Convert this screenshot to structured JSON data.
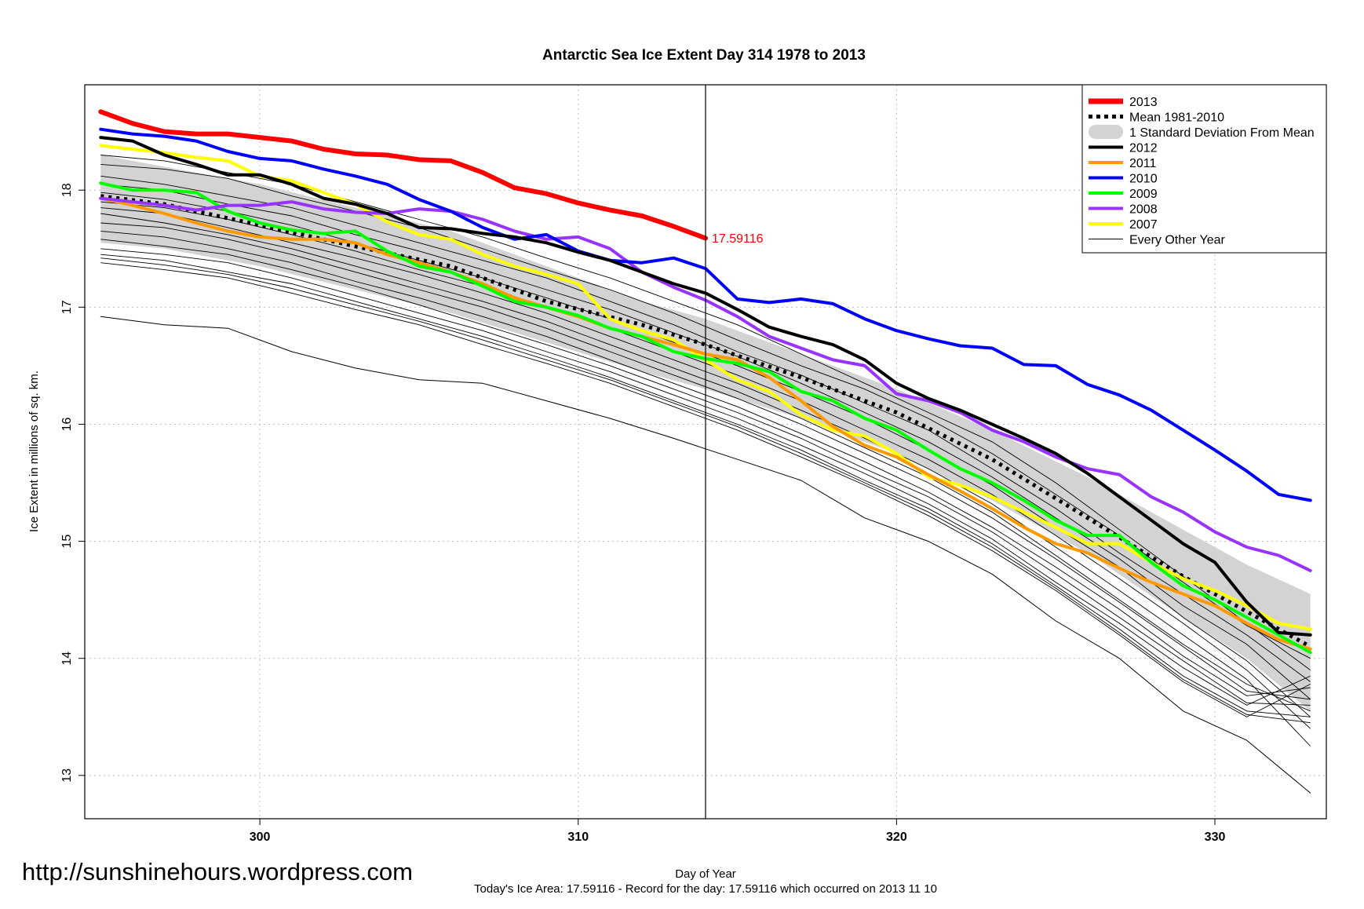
{
  "watermark": "http://sunshinehours.wordpress.com",
  "footer": "Today's Ice Area: 17.59116  - Record for the day: 17.59116 which occurred on 2013 11 10",
  "chart_data": {
    "type": "line",
    "title": "Antarctic Sea Ice Extent Day 314 1978 to 2013",
    "xlabel": "Day of Year",
    "ylabel": "Ice Extent in millions of sq. km.",
    "xlim": [
      294.5,
      333.5
    ],
    "ylim": [
      12.63,
      18.9
    ],
    "xticks": [
      300,
      310,
      320,
      330
    ],
    "yticks": [
      13,
      14,
      15,
      16,
      17,
      18
    ],
    "grid": true,
    "legend_position": "top-right",
    "vline_x": 314,
    "endpoint_label": {
      "x": 314,
      "y": 17.59116,
      "text": "17.59116",
      "color": "#ff0000"
    },
    "band": {
      "label": "1 Standard Deviation From Mean",
      "color": "#d3d3d3",
      "x": [
        295,
        297,
        300,
        303,
        306,
        309,
        312,
        314,
        317,
        320,
        323,
        326,
        329,
        331,
        333
      ],
      "upper": [
        18.3,
        18.2,
        18.05,
        17.85,
        17.65,
        17.35,
        17.05,
        16.9,
        16.6,
        16.3,
        15.95,
        15.55,
        15.1,
        14.8,
        14.55
      ],
      "lower": [
        17.55,
        17.5,
        17.35,
        17.15,
        16.95,
        16.7,
        16.45,
        16.3,
        16.05,
        15.75,
        15.35,
        14.9,
        14.35,
        14.0,
        13.55
      ]
    },
    "series": [
      {
        "name": "2013",
        "color": "#ff0000",
        "width": 6,
        "dash": "",
        "x": [
          295,
          296,
          297,
          298,
          299,
          300,
          301,
          302,
          303,
          304,
          305,
          306,
          307,
          308,
          309,
          310,
          311,
          312,
          313,
          314
        ],
        "y": [
          18.67,
          18.57,
          18.5,
          18.48,
          18.48,
          18.45,
          18.42,
          18.35,
          18.31,
          18.3,
          18.26,
          18.25,
          18.15,
          18.02,
          17.97,
          17.89,
          17.83,
          17.78,
          17.69,
          17.59
        ]
      },
      {
        "name": "Mean 1981-2010",
        "color": "#000000",
        "width": 5,
        "dash": "4 6",
        "x": [
          295,
          297,
          300,
          303,
          306,
          309,
          312,
          314,
          317,
          320,
          323,
          326,
          329,
          331,
          333
        ],
        "y": [
          17.95,
          17.88,
          17.7,
          17.52,
          17.35,
          17.05,
          16.85,
          16.68,
          16.4,
          16.1,
          15.7,
          15.2,
          14.7,
          14.4,
          14.1
        ]
      },
      {
        "name": "2012",
        "color": "#000000",
        "width": 4,
        "dash": "",
        "x": [
          295,
          296,
          297,
          298,
          299,
          300,
          301,
          302,
          303,
          304,
          305,
          306,
          307,
          308,
          309,
          310,
          311,
          312,
          313,
          314,
          315,
          316,
          317,
          318,
          319,
          320,
          321,
          322,
          323,
          324,
          325,
          326,
          327,
          328,
          329,
          330,
          331,
          332,
          333
        ],
        "y": [
          18.45,
          18.42,
          18.3,
          18.22,
          18.13,
          18.13,
          18.05,
          17.93,
          17.88,
          17.8,
          17.68,
          17.67,
          17.63,
          17.6,
          17.55,
          17.47,
          17.4,
          17.3,
          17.2,
          17.12,
          16.98,
          16.83,
          16.75,
          16.68,
          16.55,
          16.35,
          16.22,
          16.12,
          16.0,
          15.88,
          15.75,
          15.58,
          15.38,
          15.18,
          14.98,
          14.82,
          14.48,
          14.22,
          14.2
        ]
      },
      {
        "name": "2011",
        "color": "#ff9900",
        "width": 4,
        "dash": "",
        "x": [
          295,
          296,
          297,
          298,
          299,
          300,
          301,
          302,
          303,
          304,
          305,
          306,
          307,
          308,
          309,
          310,
          311,
          312,
          313,
          314,
          315,
          316,
          317,
          318,
          319,
          320,
          321,
          322,
          323,
          324,
          325,
          326,
          327,
          328,
          329,
          330,
          331,
          332,
          333
        ],
        "y": [
          17.93,
          17.87,
          17.8,
          17.72,
          17.65,
          17.6,
          17.58,
          17.58,
          17.55,
          17.45,
          17.38,
          17.3,
          17.2,
          17.08,
          17.0,
          16.92,
          16.82,
          16.75,
          16.68,
          16.6,
          16.55,
          16.4,
          16.2,
          15.98,
          15.82,
          15.72,
          15.57,
          15.43,
          15.28,
          15.12,
          14.98,
          14.9,
          14.77,
          14.65,
          14.55,
          14.45,
          14.3,
          14.16,
          14.08
        ]
      },
      {
        "name": "2010",
        "color": "#0000ff",
        "width": 4,
        "dash": "",
        "x": [
          295,
          296,
          297,
          298,
          299,
          300,
          301,
          302,
          303,
          304,
          305,
          306,
          307,
          308,
          309,
          310,
          311,
          312,
          313,
          314,
          315,
          316,
          317,
          318,
          319,
          320,
          321,
          322,
          323,
          324,
          325,
          326,
          327,
          328,
          329,
          330,
          331,
          332,
          333
        ],
        "y": [
          18.52,
          18.48,
          18.46,
          18.42,
          18.33,
          18.27,
          18.25,
          18.18,
          18.12,
          18.05,
          17.92,
          17.82,
          17.68,
          17.58,
          17.62,
          17.48,
          17.4,
          17.38,
          17.42,
          17.33,
          17.07,
          17.04,
          17.07,
          17.03,
          16.9,
          16.8,
          16.73,
          16.67,
          16.65,
          16.51,
          16.5,
          16.34,
          16.25,
          16.12,
          15.95,
          15.78,
          15.6,
          15.4,
          15.35
        ]
      },
      {
        "name": "2009",
        "color": "#00ff00",
        "width": 4,
        "dash": "",
        "x": [
          295,
          296,
          297,
          298,
          299,
          300,
          301,
          302,
          303,
          304,
          305,
          306,
          307,
          308,
          309,
          310,
          311,
          312,
          313,
          314,
          315,
          316,
          317,
          318,
          319,
          320,
          321,
          322,
          323,
          324,
          325,
          326,
          327,
          328,
          329,
          330,
          331,
          332,
          333
        ],
        "y": [
          18.06,
          18.0,
          18.0,
          17.98,
          17.82,
          17.72,
          17.66,
          17.63,
          17.65,
          17.48,
          17.35,
          17.3,
          17.18,
          17.05,
          17.0,
          16.93,
          16.82,
          16.75,
          16.62,
          16.56,
          16.52,
          16.45,
          16.28,
          16.2,
          16.05,
          15.95,
          15.78,
          15.62,
          15.5,
          15.35,
          15.18,
          15.05,
          15.05,
          14.82,
          14.62,
          14.5,
          14.35,
          14.2,
          14.05
        ]
      },
      {
        "name": "2008",
        "color": "#9933ff",
        "width": 4,
        "dash": "",
        "x": [
          295,
          296,
          297,
          298,
          299,
          300,
          301,
          302,
          303,
          304,
          305,
          306,
          307,
          308,
          309,
          310,
          311,
          312,
          313,
          314,
          315,
          316,
          317,
          318,
          319,
          320,
          321,
          322,
          323,
          324,
          325,
          326,
          327,
          328,
          329,
          330,
          331,
          332,
          333
        ],
        "y": [
          17.93,
          17.9,
          17.87,
          17.83,
          17.87,
          17.87,
          17.9,
          17.84,
          17.81,
          17.8,
          17.84,
          17.82,
          17.75,
          17.65,
          17.58,
          17.6,
          17.5,
          17.3,
          17.17,
          17.06,
          16.92,
          16.75,
          16.65,
          16.55,
          16.5,
          16.26,
          16.2,
          16.1,
          15.95,
          15.85,
          15.72,
          15.62,
          15.57,
          15.38,
          15.25,
          15.08,
          14.95,
          14.88,
          14.75
        ]
      },
      {
        "name": "2007",
        "color": "#ffff00",
        "width": 4,
        "dash": "",
        "x": [
          295,
          296,
          297,
          298,
          299,
          300,
          301,
          302,
          303,
          304,
          305,
          306,
          307,
          308,
          309,
          310,
          311,
          312,
          313,
          314,
          315,
          316,
          317,
          318,
          319,
          320,
          321,
          322,
          323,
          324,
          325,
          326,
          327,
          328,
          329,
          330,
          331,
          332,
          333
        ],
        "y": [
          18.38,
          18.35,
          18.32,
          18.28,
          18.25,
          18.12,
          18.08,
          17.98,
          17.88,
          17.73,
          17.62,
          17.58,
          17.45,
          17.35,
          17.28,
          17.2,
          16.9,
          16.8,
          16.72,
          16.55,
          16.38,
          16.28,
          16.08,
          15.95,
          15.9,
          15.75,
          15.55,
          15.48,
          15.38,
          15.25,
          15.12,
          14.98,
          14.98,
          14.82,
          14.68,
          14.58,
          14.45,
          14.3,
          14.25
        ]
      },
      {
        "name": "Every Other Year",
        "color": "#000000",
        "width": 1,
        "dash": "",
        "x": [
          295,
          297,
          299,
          301,
          303,
          305,
          307,
          309,
          311,
          313,
          315,
          317,
          319,
          321,
          323,
          325,
          327,
          329,
          331,
          333
        ],
        "y": [
          16.92,
          16.85,
          16.82,
          16.62,
          16.48,
          16.38,
          16.35,
          16.2,
          16.05,
          15.88,
          15.7,
          15.52,
          15.2,
          15.0,
          14.72,
          14.32,
          14.0,
          13.55,
          13.3,
          12.85
        ]
      }
    ],
    "background_lines": {
      "color": "#000000",
      "x": [
        295,
        297,
        299,
        301,
        303,
        305,
        307,
        309,
        311,
        313,
        315,
        317,
        319,
        321,
        323,
        325,
        327,
        329,
        331,
        333
      ],
      "lines": [
        [
          18.3,
          18.25,
          18.15,
          18.05,
          17.9,
          17.75,
          17.6,
          17.42,
          17.25,
          17.05,
          16.85,
          16.6,
          16.35,
          16.1,
          15.85,
          15.5,
          15.1,
          14.7,
          14.3,
          13.9
        ],
        [
          18.22,
          18.18,
          18.1,
          17.95,
          17.82,
          17.68,
          17.5,
          17.32,
          17.15,
          16.95,
          16.72,
          16.5,
          16.3,
          16.05,
          15.75,
          15.4,
          15.05,
          14.65,
          14.28,
          14.0
        ],
        [
          18.12,
          18.05,
          17.95,
          17.85,
          17.7,
          17.55,
          17.4,
          17.25,
          17.05,
          16.85,
          16.62,
          16.42,
          16.18,
          15.95,
          15.62,
          15.28,
          14.9,
          14.55,
          14.2,
          13.8
        ],
        [
          18.05,
          18.0,
          17.88,
          17.78,
          17.62,
          17.48,
          17.32,
          17.15,
          16.98,
          16.78,
          16.58,
          16.35,
          16.1,
          15.85,
          15.55,
          15.2,
          14.85,
          14.45,
          14.12,
          13.65
        ],
        [
          17.98,
          17.92,
          17.82,
          17.7,
          17.55,
          17.4,
          17.25,
          17.08,
          16.9,
          16.7,
          16.5,
          16.28,
          16.05,
          15.78,
          15.48,
          15.12,
          14.78,
          14.35,
          13.98,
          13.5
        ],
        [
          17.9,
          17.85,
          17.75,
          17.62,
          17.48,
          17.32,
          17.18,
          17.0,
          16.82,
          16.62,
          16.42,
          16.2,
          15.95,
          15.7,
          15.4,
          15.05,
          14.68,
          14.3,
          13.9,
          13.4
        ],
        [
          17.85,
          17.8,
          17.68,
          17.55,
          17.42,
          17.28,
          17.12,
          16.95,
          16.75,
          16.55,
          16.35,
          16.12,
          15.88,
          15.62,
          15.32,
          14.95,
          14.58,
          14.2,
          13.82,
          13.25
        ],
        [
          17.8,
          17.72,
          17.62,
          17.5,
          17.35,
          17.2,
          17.05,
          16.88,
          16.68,
          16.48,
          16.28,
          16.05,
          15.8,
          15.55,
          15.25,
          14.88,
          14.5,
          14.12,
          13.78,
          13.55
        ],
        [
          17.72,
          17.68,
          17.58,
          17.45,
          17.3,
          17.15,
          17.0,
          16.82,
          16.62,
          16.42,
          16.22,
          16.0,
          15.75,
          15.5,
          15.2,
          14.85,
          14.48,
          14.1,
          13.72,
          13.65
        ],
        [
          17.65,
          17.6,
          17.5,
          17.38,
          17.22,
          17.08,
          16.92,
          16.75,
          16.55,
          16.35,
          16.15,
          15.92,
          15.68,
          15.42,
          15.12,
          14.78,
          14.42,
          14.02,
          13.68,
          13.75
        ],
        [
          17.58,
          17.52,
          17.45,
          17.32,
          17.18,
          17.02,
          16.85,
          16.68,
          16.5,
          16.3,
          16.1,
          15.88,
          15.62,
          15.38,
          15.08,
          14.72,
          14.35,
          13.98,
          13.62,
          13.6
        ],
        [
          17.5,
          17.45,
          17.38,
          17.25,
          17.1,
          16.95,
          16.8,
          16.62,
          16.45,
          16.25,
          16.05,
          15.82,
          15.58,
          15.32,
          15.02,
          14.65,
          14.3,
          13.92,
          13.6,
          13.85
        ],
        [
          17.45,
          17.4,
          17.3,
          17.2,
          17.05,
          16.9,
          16.75,
          16.58,
          16.4,
          16.2,
          16.0,
          15.78,
          15.52,
          15.28,
          14.98,
          14.62,
          14.25,
          13.85,
          13.55,
          13.5
        ],
        [
          17.38,
          17.32,
          17.25,
          17.12,
          16.98,
          16.85,
          16.68,
          16.52,
          16.35,
          16.15,
          15.95,
          15.72,
          15.48,
          15.22,
          14.92,
          14.58,
          14.2,
          13.8,
          13.5,
          13.78
        ],
        [
          17.42,
          17.36,
          17.28,
          17.16,
          17.02,
          16.88,
          16.72,
          16.55,
          16.38,
          16.18,
          15.98,
          15.75,
          15.5,
          15.25,
          14.95,
          14.6,
          14.22,
          13.82,
          13.52,
          13.45
        ]
      ]
    },
    "legend": [
      {
        "label": "2013",
        "color": "#ff0000",
        "style": "thick"
      },
      {
        "label": "Mean 1981-2010",
        "color": "#000000",
        "style": "dashed"
      },
      {
        "label": "1 Standard Deviation From Mean",
        "color": "#d3d3d3",
        "style": "band"
      },
      {
        "label": "2012",
        "color": "#000000",
        "style": "line"
      },
      {
        "label": "2011",
        "color": "#ff9900",
        "style": "line"
      },
      {
        "label": "2010",
        "color": "#0000ff",
        "style": "line"
      },
      {
        "label": "2009",
        "color": "#00ff00",
        "style": "line"
      },
      {
        "label": "2008",
        "color": "#9933ff",
        "style": "line"
      },
      {
        "label": "2007",
        "color": "#ffff00",
        "style": "line"
      },
      {
        "label": "Every Other Year",
        "color": "#000000",
        "style": "thin"
      }
    ]
  }
}
